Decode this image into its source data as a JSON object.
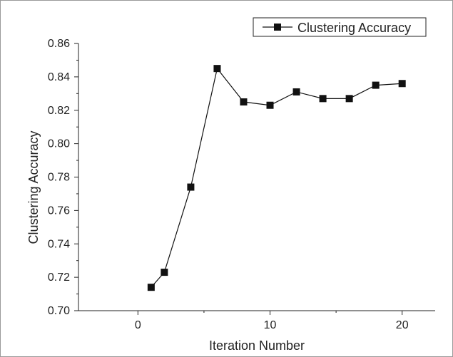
{
  "chart_data": {
    "type": "line",
    "xlabel": "Iteration Number",
    "ylabel": "Clustering Accuracy",
    "xlim": [
      -4.5,
      22.5
    ],
    "ylim": [
      0.7,
      0.86
    ],
    "x_ticks": [
      0,
      10,
      20
    ],
    "x_tick_labels": [
      "0",
      "10",
      "20"
    ],
    "y_ticks": [
      0.7,
      0.72,
      0.74,
      0.76,
      0.78,
      0.8,
      0.82,
      0.84,
      0.86
    ],
    "y_tick_labels": [
      "0.70",
      "0.72",
      "0.74",
      "0.76",
      "0.78",
      "0.80",
      "0.82",
      "0.84",
      "0.86"
    ],
    "grid": false,
    "legend_position": "top-right",
    "series": [
      {
        "name": "Clustering Accuracy",
        "marker": "square",
        "color": "#111111",
        "x": [
          1,
          2,
          4,
          6,
          8,
          10,
          12,
          14,
          16,
          18,
          20
        ],
        "y": [
          0.714,
          0.723,
          0.774,
          0.845,
          0.825,
          0.823,
          0.831,
          0.827,
          0.827,
          0.835,
          0.836
        ]
      }
    ]
  }
}
